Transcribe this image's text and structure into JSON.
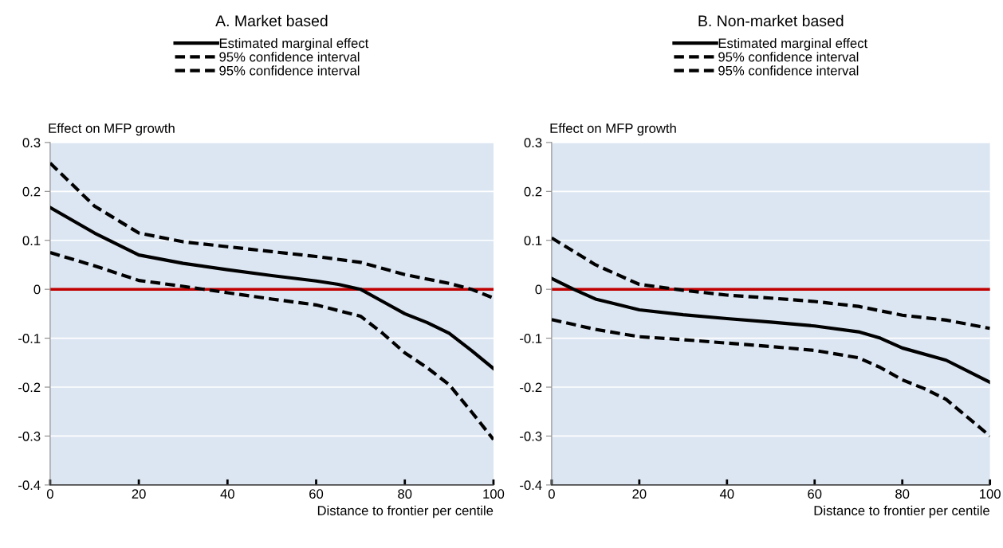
{
  "chart_data": [
    {
      "type": "line",
      "title": "A. Market based",
      "ylabel": "Effect on MFP growth",
      "xlabel": "Distance to frontier per centile",
      "xlim": [
        0,
        100
      ],
      "xticks": [
        0,
        20,
        40,
        60,
        80,
        100
      ],
      "ylim": [
        -0.4,
        0.3
      ],
      "yticks": [
        -0.4,
        -0.3,
        -0.2,
        -0.1,
        0,
        0.1,
        0.2,
        0.3
      ],
      "grid": "y",
      "legend": "top",
      "ref_lines": [
        {
          "axis": "y",
          "value": 0,
          "color": "#c00000"
        }
      ],
      "series": [
        {
          "name": "Estimated marginal effect",
          "color": "#000000",
          "line_style": "solid",
          "x": [
            0,
            10,
            20,
            30,
            40,
            50,
            60,
            65,
            70,
            75,
            80,
            85,
            90,
            95,
            100
          ],
          "values": [
            0.167,
            0.115,
            0.07,
            0.053,
            0.04,
            0.028,
            0.017,
            0.01,
            0.0,
            -0.025,
            -0.05,
            -0.068,
            -0.09,
            -0.125,
            -0.162
          ]
        },
        {
          "name": "95% confidence interval",
          "color": "#000000",
          "line_style": "dashed",
          "x": [
            0,
            10,
            20,
            30,
            40,
            50,
            60,
            70,
            80,
            90,
            95,
            100
          ],
          "values": [
            0.258,
            0.17,
            0.115,
            0.097,
            0.087,
            0.077,
            0.067,
            0.055,
            0.03,
            0.012,
            0.0,
            -0.018
          ]
        },
        {
          "name": "95% confidence interval",
          "color": "#000000",
          "line_style": "dashed",
          "x": [
            0,
            10,
            20,
            30,
            40,
            50,
            60,
            70,
            75,
            80,
            85,
            90,
            95,
            100
          ],
          "values": [
            0.075,
            0.048,
            0.018,
            0.006,
            -0.007,
            -0.02,
            -0.032,
            -0.055,
            -0.09,
            -0.13,
            -0.16,
            -0.195,
            -0.25,
            -0.307
          ]
        }
      ]
    },
    {
      "type": "line",
      "title": "B. Non-market based",
      "ylabel": "Effect on MFP growth",
      "xlabel": "Distance to frontier per centile",
      "xlim": [
        0,
        100
      ],
      "xticks": [
        0,
        20,
        40,
        60,
        80,
        100
      ],
      "ylim": [
        -0.4,
        0.3
      ],
      "yticks": [
        -0.4,
        -0.3,
        -0.2,
        -0.1,
        0,
        0.1,
        0.2,
        0.3
      ],
      "grid": "y",
      "legend": "top",
      "ref_lines": [
        {
          "axis": "y",
          "value": 0,
          "color": "#c00000"
        }
      ],
      "series": [
        {
          "name": "Estimated marginal effect",
          "color": "#000000",
          "line_style": "solid",
          "x": [
            0,
            5,
            10,
            20,
            30,
            40,
            50,
            60,
            70,
            75,
            80,
            90,
            100
          ],
          "values": [
            0.022,
            0.0,
            -0.02,
            -0.042,
            -0.052,
            -0.06,
            -0.067,
            -0.075,
            -0.087,
            -0.1,
            -0.12,
            -0.145,
            -0.19
          ]
        },
        {
          "name": "95% confidence interval",
          "color": "#000000",
          "line_style": "dashed",
          "x": [
            0,
            10,
            20,
            30,
            40,
            50,
            60,
            70,
            80,
            90,
            100
          ],
          "values": [
            0.105,
            0.05,
            0.01,
            -0.002,
            -0.012,
            -0.018,
            -0.025,
            -0.035,
            -0.053,
            -0.063,
            -0.08
          ]
        },
        {
          "name": "95% confidence interval",
          "color": "#000000",
          "line_style": "dashed",
          "x": [
            0,
            10,
            20,
            30,
            40,
            50,
            60,
            70,
            75,
            80,
            85,
            90,
            100
          ],
          "values": [
            -0.062,
            -0.082,
            -0.097,
            -0.103,
            -0.11,
            -0.117,
            -0.125,
            -0.14,
            -0.16,
            -0.185,
            -0.203,
            -0.225,
            -0.3
          ]
        }
      ]
    }
  ]
}
